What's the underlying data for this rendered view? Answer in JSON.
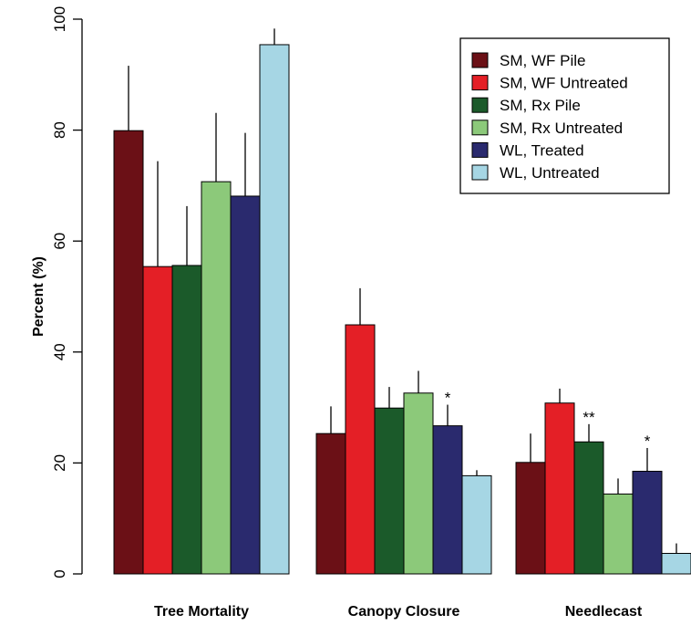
{
  "chart_data": {
    "type": "bar",
    "title": "",
    "xlabel": "",
    "ylabel": "Percent (%)",
    "ylim": [
      0,
      100
    ],
    "yticks": [
      0,
      20,
      40,
      60,
      80,
      100
    ],
    "grid": false,
    "legend_position": "top-right",
    "categories": [
      "Tree Mortality",
      "Canopy Closure",
      "Needlecast"
    ],
    "series": [
      {
        "name": "SM, WF Pile",
        "color": "#6b1016",
        "values": [
          79.9,
          25.3,
          20.1
        ],
        "errors": [
          11.7,
          4.9,
          5.2
        ]
      },
      {
        "name": "SM, WF Untreated",
        "color": "#e41f26",
        "values": [
          55.4,
          44.9,
          30.8
        ],
        "errors": [
          19.0,
          6.6,
          2.6
        ]
      },
      {
        "name": "SM, Rx Pile",
        "color": "#1b5a2a",
        "values": [
          55.6,
          29.9,
          23.8
        ],
        "errors": [
          10.7,
          3.8,
          3.2
        ]
      },
      {
        "name": "SM, Rx Untreated",
        "color": "#8cc97a",
        "values": [
          70.7,
          32.6,
          14.4
        ],
        "errors": [
          12.4,
          4.0,
          2.8
        ]
      },
      {
        "name": "WL, Treated",
        "color": "#2a2a6e",
        "values": [
          68.1,
          26.7,
          18.5
        ],
        "errors": [
          11.4,
          3.8,
          4.2
        ]
      },
      {
        "name": "WL, Untreated",
        "color": "#a6d6e4",
        "values": [
          95.4,
          17.7,
          3.7
        ],
        "errors": [
          2.9,
          1.0,
          1.8
        ]
      }
    ],
    "annotations": [
      {
        "category": "Canopy Closure",
        "series": "WL, Treated",
        "text": "*"
      },
      {
        "category": "Needlecast",
        "series": "SM, Rx Pile",
        "text": "**"
      },
      {
        "category": "Needlecast",
        "series": "WL, Treated",
        "text": "*"
      }
    ]
  }
}
